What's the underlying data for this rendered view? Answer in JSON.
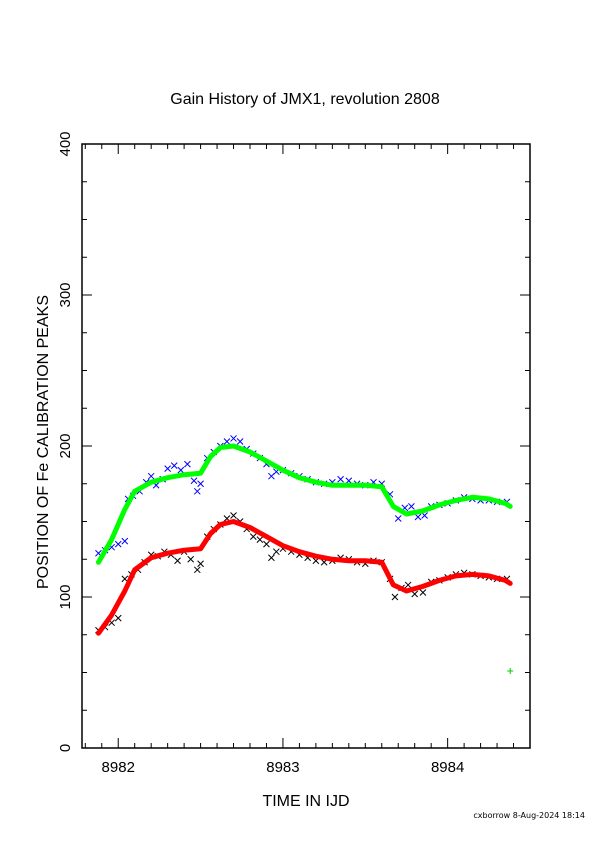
{
  "chart_data": {
    "type": "scatter",
    "title": "Gain History of JMX1, revolution 2808",
    "xlabel": "TIME IN IJD",
    "ylabel": "POSITION OF Fe CALIBRATION PEAKS",
    "xlim": [
      8981.78,
      8984.5
    ],
    "ylim": [
      0,
      400
    ],
    "x_ticks": [
      8982,
      8983,
      8984
    ],
    "y_ticks": [
      0,
      100,
      200,
      300,
      400
    ],
    "grid": false,
    "series": [
      {
        "kind": "markers",
        "marker": "x",
        "color": "#0000ff",
        "points": [
          [
            8981.88,
            129
          ],
          [
            8981.92,
            131
          ],
          [
            8981.96,
            133
          ],
          [
            8982.0,
            135
          ],
          [
            8982.04,
            137
          ],
          [
            8982.06,
            165
          ],
          [
            8982.09,
            167
          ],
          [
            8982.13,
            170
          ],
          [
            8982.17,
            176
          ],
          [
            8982.2,
            180
          ],
          [
            8982.23,
            174
          ],
          [
            8982.27,
            178
          ],
          [
            8982.3,
            185
          ],
          [
            8982.34,
            187
          ],
          [
            8982.38,
            184
          ],
          [
            8982.42,
            188
          ],
          [
            8982.46,
            177
          ],
          [
            8982.48,
            170
          ],
          [
            8982.5,
            175
          ],
          [
            8982.54,
            192
          ],
          [
            8982.58,
            196
          ],
          [
            8982.62,
            200
          ],
          [
            8982.66,
            203
          ],
          [
            8982.7,
            205
          ],
          [
            8982.74,
            203
          ],
          [
            8982.78,
            198
          ],
          [
            8982.82,
            195
          ],
          [
            8982.86,
            192
          ],
          [
            8982.9,
            188
          ],
          [
            8982.93,
            180
          ],
          [
            8982.96,
            183
          ],
          [
            8983.0,
            184
          ],
          [
            8983.05,
            182
          ],
          [
            8983.1,
            180
          ],
          [
            8983.15,
            178
          ],
          [
            8983.2,
            176
          ],
          [
            8983.25,
            175
          ],
          [
            8983.3,
            176
          ],
          [
            8983.35,
            178
          ],
          [
            8983.4,
            177
          ],
          [
            8983.45,
            175
          ],
          [
            8983.5,
            174
          ],
          [
            8983.55,
            176
          ],
          [
            8983.6,
            175
          ],
          [
            8983.65,
            168
          ],
          [
            8983.7,
            152
          ],
          [
            8983.74,
            159
          ],
          [
            8983.78,
            160
          ],
          [
            8983.82,
            153
          ],
          [
            8983.86,
            154
          ],
          [
            8983.9,
            160
          ],
          [
            8983.95,
            161
          ],
          [
            8984.0,
            162
          ],
          [
            8984.05,
            164
          ],
          [
            8984.1,
            166
          ],
          [
            8984.15,
            165
          ],
          [
            8984.2,
            164
          ],
          [
            8984.25,
            164
          ],
          [
            8984.3,
            163
          ],
          [
            8984.36,
            163
          ]
        ]
      },
      {
        "kind": "markers",
        "marker": "x",
        "color": "#000000",
        "points": [
          [
            8981.88,
            78
          ],
          [
            8981.92,
            80
          ],
          [
            8981.96,
            83
          ],
          [
            8982.0,
            86
          ],
          [
            8982.04,
            112
          ],
          [
            8982.08,
            115
          ],
          [
            8982.12,
            118
          ],
          [
            8982.16,
            123
          ],
          [
            8982.2,
            128
          ],
          [
            8982.24,
            127
          ],
          [
            8982.28,
            130
          ],
          [
            8982.32,
            128
          ],
          [
            8982.36,
            124
          ],
          [
            8982.4,
            130
          ],
          [
            8982.44,
            125
          ],
          [
            8982.48,
            118
          ],
          [
            8982.5,
            122
          ],
          [
            8982.54,
            140
          ],
          [
            8982.58,
            145
          ],
          [
            8982.62,
            148
          ],
          [
            8982.66,
            152
          ],
          [
            8982.7,
            154
          ],
          [
            8982.74,
            150
          ],
          [
            8982.78,
            145
          ],
          [
            8982.82,
            140
          ],
          [
            8982.86,
            138
          ],
          [
            8982.9,
            135
          ],
          [
            8982.93,
            126
          ],
          [
            8982.96,
            130
          ],
          [
            8983.0,
            132
          ],
          [
            8983.05,
            130
          ],
          [
            8983.1,
            128
          ],
          [
            8983.15,
            126
          ],
          [
            8983.2,
            124
          ],
          [
            8983.25,
            123
          ],
          [
            8983.3,
            124
          ],
          [
            8983.35,
            126
          ],
          [
            8983.4,
            125
          ],
          [
            8983.45,
            123
          ],
          [
            8983.5,
            122
          ],
          [
            8983.55,
            124
          ],
          [
            8983.6,
            123
          ],
          [
            8983.65,
            112
          ],
          [
            8983.68,
            100
          ],
          [
            8983.72,
            106
          ],
          [
            8983.76,
            108
          ],
          [
            8983.8,
            102
          ],
          [
            8983.85,
            103
          ],
          [
            8983.9,
            110
          ],
          [
            8983.95,
            111
          ],
          [
            8984.0,
            113
          ],
          [
            8984.05,
            115
          ],
          [
            8984.1,
            116
          ],
          [
            8984.15,
            115
          ],
          [
            8984.2,
            114
          ],
          [
            8984.25,
            113
          ],
          [
            8984.3,
            112
          ],
          [
            8984.36,
            112
          ]
        ]
      },
      {
        "kind": "curve",
        "color": "#00ff00",
        "points": [
          [
            8981.88,
            123
          ],
          [
            8981.96,
            138
          ],
          [
            8982.04,
            158
          ],
          [
            8982.1,
            170
          ],
          [
            8982.2,
            176
          ],
          [
            8982.3,
            179
          ],
          [
            8982.4,
            181
          ],
          [
            8982.5,
            182
          ],
          [
            8982.56,
            193
          ],
          [
            8982.62,
            199
          ],
          [
            8982.7,
            200
          ],
          [
            8982.8,
            196
          ],
          [
            8982.9,
            190
          ],
          [
            8983.0,
            184
          ],
          [
            8983.1,
            179
          ],
          [
            8983.2,
            176
          ],
          [
            8983.3,
            174
          ],
          [
            8983.4,
            174
          ],
          [
            8983.5,
            174
          ],
          [
            8983.6,
            173
          ],
          [
            8983.67,
            160
          ],
          [
            8983.75,
            155
          ],
          [
            8983.85,
            157
          ],
          [
            8983.95,
            161
          ],
          [
            8984.05,
            164
          ],
          [
            8984.15,
            166
          ],
          [
            8984.25,
            165
          ],
          [
            8984.35,
            162
          ],
          [
            8984.38,
            160
          ]
        ]
      },
      {
        "kind": "curve",
        "color": "#ff0000",
        "points": [
          [
            8981.88,
            76
          ],
          [
            8981.96,
            88
          ],
          [
            8982.04,
            104
          ],
          [
            8982.1,
            118
          ],
          [
            8982.2,
            126
          ],
          [
            8982.3,
            129
          ],
          [
            8982.4,
            131
          ],
          [
            8982.5,
            132
          ],
          [
            8982.56,
            142
          ],
          [
            8982.62,
            148
          ],
          [
            8982.7,
            150
          ],
          [
            8982.8,
            146
          ],
          [
            8982.9,
            140
          ],
          [
            8983.0,
            134
          ],
          [
            8983.1,
            130
          ],
          [
            8983.2,
            127
          ],
          [
            8983.3,
            125
          ],
          [
            8983.4,
            124
          ],
          [
            8983.5,
            124
          ],
          [
            8983.6,
            123
          ],
          [
            8983.67,
            108
          ],
          [
            8983.75,
            104
          ],
          [
            8983.85,
            107
          ],
          [
            8983.95,
            111
          ],
          [
            8984.05,
            114
          ],
          [
            8984.15,
            115
          ],
          [
            8984.25,
            114
          ],
          [
            8984.35,
            111
          ],
          [
            8984.38,
            109
          ]
        ]
      },
      {
        "kind": "markers",
        "marker": "+",
        "color": "#00cc00",
        "points": [
          [
            8984.38,
            51
          ]
        ]
      }
    ]
  },
  "footer": {
    "stamp": "cxborrow  8-Aug-2024 18:14"
  }
}
